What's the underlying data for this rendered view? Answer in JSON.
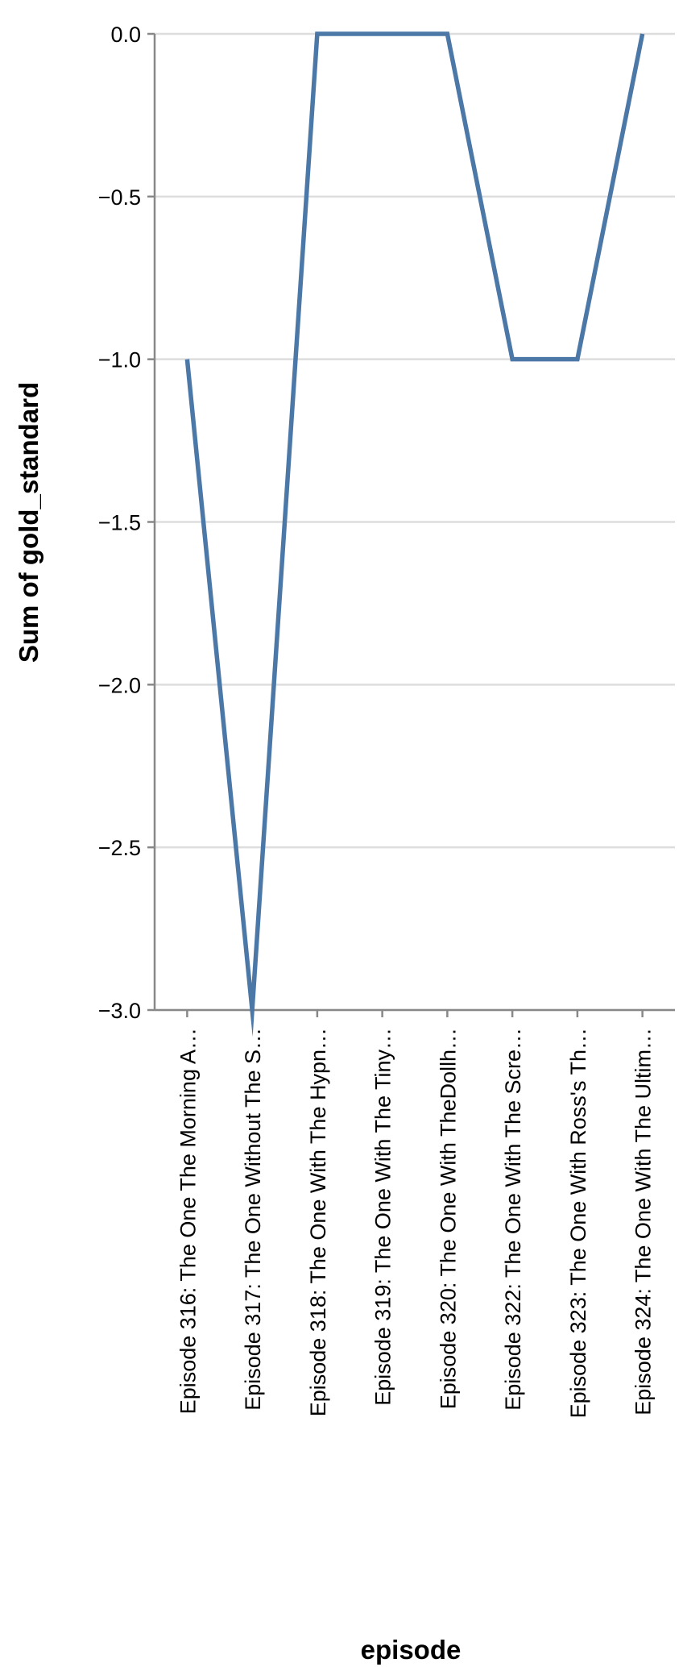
{
  "chart_data": {
    "type": "line",
    "xlabel": "episode",
    "ylabel": "Sum of gold_standard",
    "ylim": [
      -3.0,
      0.0
    ],
    "yticks": [
      "0.0",
      "−0.5",
      "−1.0",
      "−1.5",
      "−2.0",
      "−2.5",
      "−3.0"
    ],
    "ytick_values": [
      0.0,
      -0.5,
      -1.0,
      -1.5,
      -2.0,
      -2.5,
      -3.0
    ],
    "grid": true,
    "categories": [
      "Episode 316: The One The Morning A…",
      "Episode 317: The One Without The S…",
      "Episode 318: The One With The Hypn…",
      "Episode 319: The One With The Tiny…",
      "Episode 320: The One With TheDollh…",
      "Episode 322: The One With The Scre…",
      "Episode 323: The One With Ross's Th…",
      "Episode 324: The One With The Ultim…"
    ],
    "series": [
      {
        "values": [
          -1,
          -3,
          0,
          0,
          0,
          -1,
          -1,
          0
        ],
        "color": "#4c78a8"
      }
    ]
  }
}
